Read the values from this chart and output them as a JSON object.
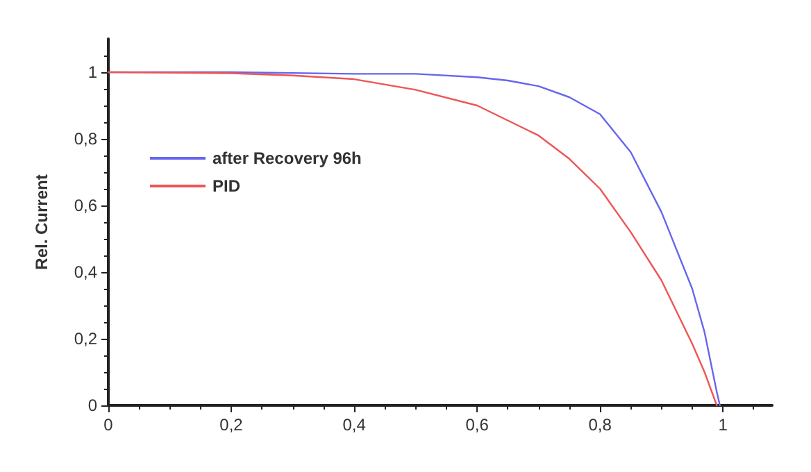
{
  "chart_data": {
    "type": "line",
    "ylabel": "Rel. Current",
    "xlim": [
      0,
      1.08
    ],
    "ylim": [
      0,
      1.1
    ],
    "xticks": [
      0,
      {
        "value": 0.2,
        "label": "0,2"
      },
      {
        "value": 0.4,
        "label": "0,4"
      },
      {
        "value": 0.6,
        "label": "0,6"
      },
      {
        "value": 0.8,
        "label": "0,8"
      },
      1
    ],
    "yticks": [
      0,
      {
        "value": 0.2,
        "label": "0,2"
      },
      {
        "value": 0.4,
        "label": "0,4"
      },
      {
        "value": 0.6,
        "label": "0,6"
      },
      {
        "value": 0.8,
        "label": "0,8"
      },
      1
    ],
    "grid": false,
    "legend": "top left",
    "marker": "none",
    "line_style": "solid",
    "series": [
      {
        "name": "after Recovery 96h",
        "color": "#6666ee",
        "x": [
          0,
          0.2,
          0.4,
          0.5,
          0.6,
          0.65,
          0.7,
          0.75,
          0.8,
          0.85,
          0.9,
          0.95,
          0.97,
          0.99,
          0.995
        ],
        "values": [
          1,
          1,
          0.995,
          0.995,
          0.985,
          0.975,
          0.958,
          0.925,
          0.874,
          0.76,
          0.58,
          0.35,
          0.22,
          0.04,
          0
        ]
      },
      {
        "name": "PID",
        "color": "#ee5555",
        "x": [
          0,
          0.2,
          0.3,
          0.4,
          0.5,
          0.6,
          0.7,
          0.75,
          0.8,
          0.85,
          0.9,
          0.95,
          0.97,
          0.99
        ],
        "values": [
          1,
          0.997,
          0.99,
          0.979,
          0.947,
          0.9,
          0.81,
          0.74,
          0.65,
          0.52,
          0.375,
          0.185,
          0.1,
          0
        ]
      }
    ]
  }
}
